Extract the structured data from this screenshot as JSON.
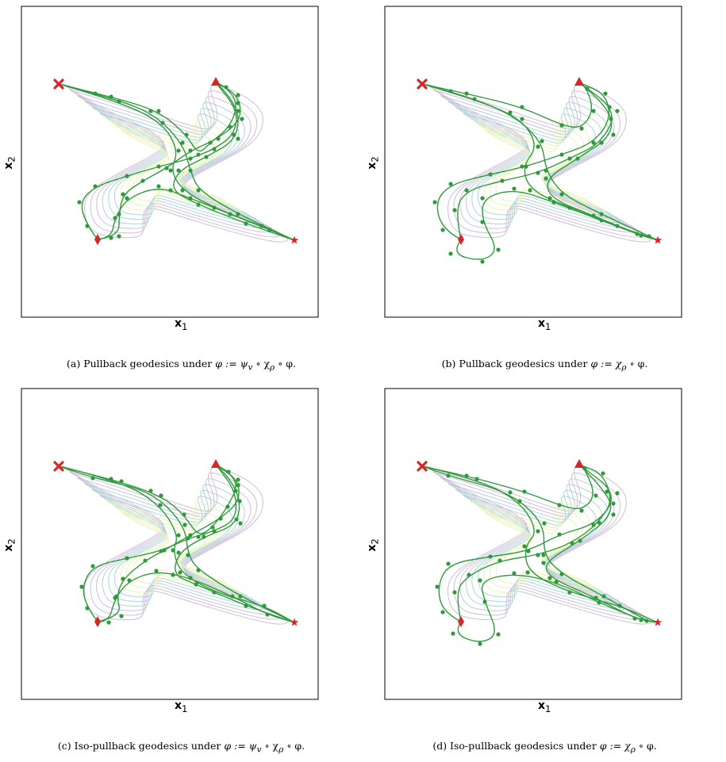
{
  "figures": [
    {
      "id": "a",
      "caption_prefix": "(a) Pullback geodesics under ",
      "caption_math": "φ := ψ",
      "sub_v": "v",
      "math_mid": " ∘ χ",
      "sub_rho": "ρ",
      "math_tail": " ∘ φ.",
      "variant": "full",
      "style": "pullback"
    },
    {
      "id": "b",
      "caption_prefix": "(b) Pullback geodesics under ",
      "caption_math": "φ := χ",
      "sub_rho": "ρ",
      "math_tail": " ∘ φ.",
      "variant": "chi",
      "style": "pullback"
    },
    {
      "id": "c",
      "caption_prefix": "(c) Iso-pullback geodesics under ",
      "caption_math": "φ := ψ",
      "sub_v": "v",
      "math_mid": " ∘ χ",
      "sub_rho": "ρ",
      "math_tail": " ∘ φ.",
      "variant": "full",
      "style": "iso"
    },
    {
      "id": "d",
      "caption_prefix": "(d) Iso-pullback geodesics under ",
      "caption_math": "φ := χ",
      "sub_rho": "ρ",
      "math_tail": " ∘ φ.",
      "variant": "chi",
      "style": "iso"
    }
  ],
  "axes": {
    "xlabel": "x",
    "xsub": "1",
    "ylabel": "x",
    "ysub": "2"
  },
  "colors": {
    "geodesic": "#2e9a3c",
    "geodesic_dot": "#2e9a3c",
    "marker": "#d62728",
    "contour_outer": "#c9b8d6",
    "contour_mid": "#a9d0d4",
    "contour_inner": "#e8f3b0",
    "frame": "#000000"
  },
  "markers": [
    "cross-marker",
    "triangle-marker",
    "diamond-marker",
    "star-marker"
  ]
}
